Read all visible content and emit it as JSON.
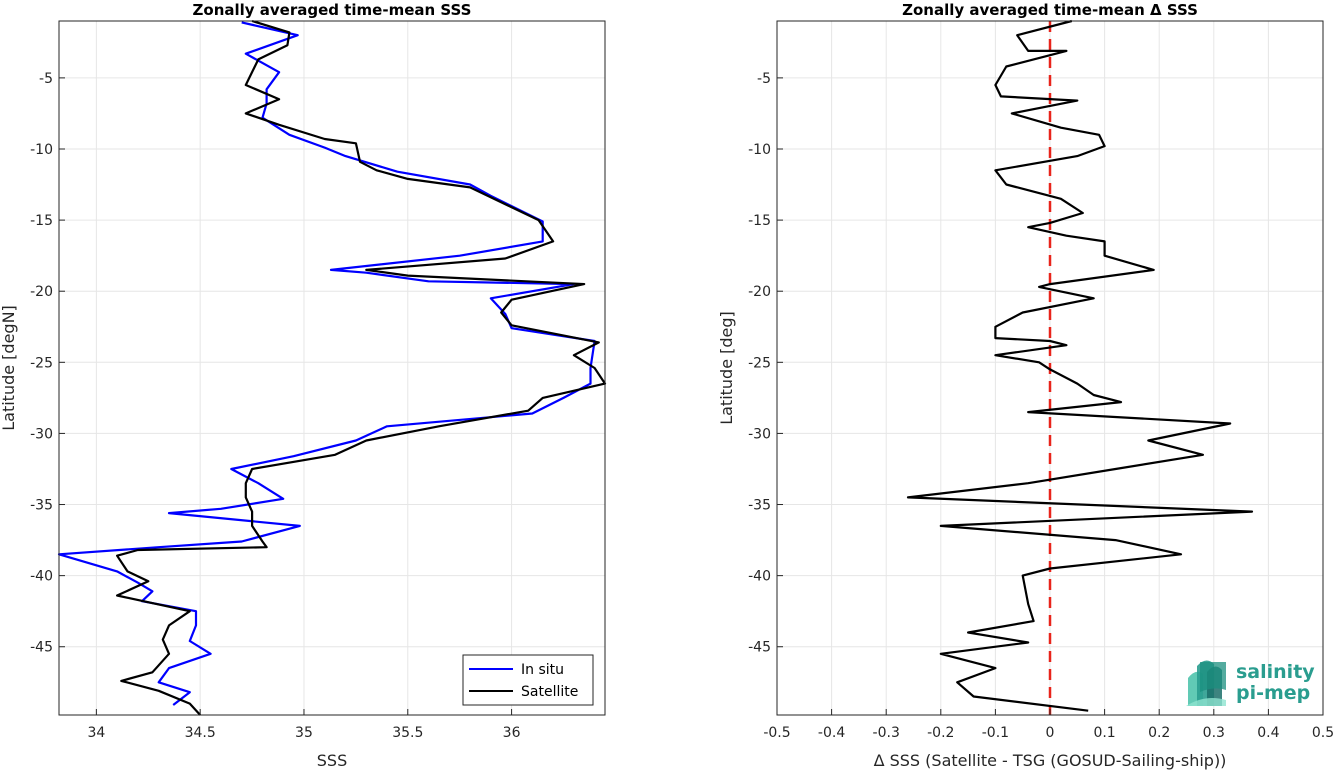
{
  "chart_data": [
    {
      "type": "line",
      "title": "Zonally averaged time-mean SSS",
      "xlabel": "SSS",
      "ylabel": "Latitude [degN]",
      "xlim": [
        33.82,
        36.45
      ],
      "ylim": [
        -49.8,
        -1
      ],
      "xticks": [
        "34",
        "34.5",
        "35",
        "35.5",
        "36"
      ],
      "yticks": [
        "-5",
        "-10",
        "-15",
        "-20",
        "-25",
        "-30",
        "-35",
        "-40",
        "-45"
      ],
      "grid": true,
      "legend_position": "bottom-right",
      "series": [
        {
          "name": "In situ",
          "color": "#0000ff",
          "points": [
            [
              34.7,
              -1.1
            ],
            [
              34.97,
              -2.0
            ],
            [
              34.72,
              -3.3
            ],
            [
              34.88,
              -4.6
            ],
            [
              34.82,
              -5.8
            ],
            [
              34.82,
              -6.8
            ],
            [
              34.8,
              -7.8
            ],
            [
              34.93,
              -9.0
            ],
            [
              35.1,
              -9.9
            ],
            [
              35.2,
              -10.5
            ],
            [
              35.45,
              -11.6
            ],
            [
              35.8,
              -12.5
            ],
            [
              35.9,
              -13.3
            ],
            [
              36.15,
              -15.1
            ],
            [
              36.15,
              -16.5
            ],
            [
              35.75,
              -17.5
            ],
            [
              35.13,
              -18.5
            ],
            [
              35.3,
              -18.7
            ],
            [
              35.6,
              -19.3
            ],
            [
              36.3,
              -19.5
            ],
            [
              35.9,
              -20.5
            ],
            [
              35.97,
              -21.6
            ],
            [
              36.0,
              -22.6
            ],
            [
              36.4,
              -23.5
            ],
            [
              36.38,
              -25.4
            ],
            [
              36.38,
              -26.5
            ],
            [
              36.25,
              -27.5
            ],
            [
              36.1,
              -28.6
            ],
            [
              35.4,
              -29.5
            ],
            [
              35.25,
              -30.5
            ],
            [
              34.95,
              -31.6
            ],
            [
              34.65,
              -32.5
            ],
            [
              34.78,
              -33.5
            ],
            [
              34.9,
              -34.6
            ],
            [
              34.6,
              -35.3
            ],
            [
              34.35,
              -35.6
            ],
            [
              34.98,
              -36.5
            ],
            [
              34.7,
              -37.6
            ],
            [
              34.3,
              -38.0
            ],
            [
              33.82,
              -38.5
            ],
            [
              34.1,
              -39.7
            ],
            [
              34.2,
              -40.5
            ],
            [
              34.27,
              -41.1
            ],
            [
              34.22,
              -41.8
            ],
            [
              34.48,
              -42.5
            ],
            [
              34.48,
              -43.5
            ],
            [
              34.45,
              -44.6
            ],
            [
              34.55,
              -45.5
            ],
            [
              34.35,
              -46.5
            ],
            [
              34.3,
              -47.5
            ],
            [
              34.45,
              -48.2
            ],
            [
              34.37,
              -49.1
            ]
          ]
        },
        {
          "name": "Satellite",
          "color": "#000000",
          "points": [
            [
              34.75,
              -1.0
            ],
            [
              34.93,
              -1.8
            ],
            [
              34.92,
              -2.7
            ],
            [
              34.78,
              -3.7
            ],
            [
              34.72,
              -5.5
            ],
            [
              34.88,
              -6.5
            ],
            [
              34.72,
              -7.5
            ],
            [
              34.88,
              -8.3
            ],
            [
              35.1,
              -9.3
            ],
            [
              35.25,
              -9.6
            ],
            [
              35.27,
              -10.9
            ],
            [
              35.35,
              -11.5
            ],
            [
              35.5,
              -12.1
            ],
            [
              35.8,
              -12.7
            ],
            [
              36.13,
              -15.0
            ],
            [
              36.2,
              -16.5
            ],
            [
              35.97,
              -17.7
            ],
            [
              35.3,
              -18.5
            ],
            [
              35.5,
              -18.9
            ],
            [
              36.35,
              -19.5
            ],
            [
              36.0,
              -20.6
            ],
            [
              35.95,
              -21.5
            ],
            [
              36.0,
              -22.4
            ],
            [
              36.42,
              -23.6
            ],
            [
              36.3,
              -24.5
            ],
            [
              36.4,
              -25.4
            ],
            [
              36.45,
              -26.5
            ],
            [
              36.15,
              -27.5
            ],
            [
              36.08,
              -28.4
            ],
            [
              35.65,
              -29.5
            ],
            [
              35.3,
              -30.5
            ],
            [
              35.15,
              -31.5
            ],
            [
              34.75,
              -32.5
            ],
            [
              34.72,
              -33.5
            ],
            [
              34.72,
              -34.5
            ],
            [
              34.75,
              -35.5
            ],
            [
              34.75,
              -36.5
            ],
            [
              34.8,
              -37.6
            ],
            [
              34.82,
              -38.0
            ],
            [
              34.2,
              -38.2
            ],
            [
              34.1,
              -38.6
            ],
            [
              34.15,
              -39.7
            ],
            [
              34.25,
              -40.4
            ],
            [
              34.1,
              -41.4
            ],
            [
              34.45,
              -42.5
            ],
            [
              34.35,
              -43.5
            ],
            [
              34.32,
              -44.5
            ],
            [
              34.35,
              -45.5
            ],
            [
              34.27,
              -46.8
            ],
            [
              34.12,
              -47.4
            ],
            [
              34.3,
              -48.1
            ],
            [
              34.45,
              -49.0
            ],
            [
              34.5,
              -49.8
            ]
          ]
        }
      ]
    },
    {
      "type": "line",
      "title": "Zonally averaged time-mean Δ SSS",
      "xlabel": "Δ SSS (Satellite - TSG (GOSUD-Sailing-ship))",
      "ylabel": "Latitude [deg]",
      "xlim": [
        -0.5,
        0.5
      ],
      "ylim": [
        -49.8,
        -1
      ],
      "xticks": [
        "-0.5",
        "-0.4",
        "-0.3",
        "-0.2",
        "-0.1",
        "0",
        "0.1",
        "0.2",
        "0.3",
        "0.4",
        "0.5"
      ],
      "yticks": [
        "-5",
        "-10",
        "-15",
        "-20",
        "-25",
        "-30",
        "-35",
        "-40",
        "-45"
      ],
      "grid": true,
      "reference_line": {
        "x": 0,
        "color": "#e8241b",
        "style": "dashed"
      },
      "series": [
        {
          "name": "",
          "color": "#000000",
          "points": [
            [
              0.04,
              -1.0
            ],
            [
              -0.06,
              -2.0
            ],
            [
              -0.04,
              -3.1
            ],
            [
              0.03,
              -3.1
            ],
            [
              -0.08,
              -4.2
            ],
            [
              -0.1,
              -5.5
            ],
            [
              -0.09,
              -6.3
            ],
            [
              0.05,
              -6.6
            ],
            [
              -0.07,
              -7.5
            ],
            [
              0.02,
              -8.5
            ],
            [
              0.09,
              -9.0
            ],
            [
              0.1,
              -9.8
            ],
            [
              0.05,
              -10.5
            ],
            [
              -0.1,
              -11.5
            ],
            [
              -0.08,
              -12.5
            ],
            [
              0.02,
              -13.5
            ],
            [
              0.06,
              -14.5
            ],
            [
              0.0,
              -15.2
            ],
            [
              -0.04,
              -15.5
            ],
            [
              0.03,
              -16.1
            ],
            [
              0.1,
              -16.5
            ],
            [
              0.1,
              -17.5
            ],
            [
              0.19,
              -18.5
            ],
            [
              0.0,
              -19.5
            ],
            [
              -0.02,
              -19.7
            ],
            [
              0.08,
              -20.5
            ],
            [
              -0.05,
              -21.5
            ],
            [
              -0.1,
              -22.5
            ],
            [
              -0.1,
              -23.3
            ],
            [
              0.0,
              -23.5
            ],
            [
              0.03,
              -23.8
            ],
            [
              -0.1,
              -24.5
            ],
            [
              -0.02,
              -25.0
            ],
            [
              0.0,
              -25.5
            ],
            [
              0.05,
              -26.5
            ],
            [
              0.08,
              -27.3
            ],
            [
              0.13,
              -27.8
            ],
            [
              -0.04,
              -28.5
            ],
            [
              0.33,
              -29.3
            ],
            [
              0.18,
              -30.5
            ],
            [
              0.28,
              -31.5
            ],
            [
              0.12,
              -32.5
            ],
            [
              -0.04,
              -33.5
            ],
            [
              -0.26,
              -34.5
            ],
            [
              0.37,
              -35.5
            ],
            [
              -0.2,
              -36.5
            ],
            [
              0.12,
              -37.5
            ],
            [
              0.24,
              -38.5
            ],
            [
              0.0,
              -39.5
            ],
            [
              -0.05,
              -40.0
            ],
            [
              -0.04,
              -42.0
            ],
            [
              -0.03,
              -43.2
            ],
            [
              -0.15,
              -44.0
            ],
            [
              -0.04,
              -44.7
            ],
            [
              -0.2,
              -45.5
            ],
            [
              -0.1,
              -46.5
            ],
            [
              -0.17,
              -47.5
            ],
            [
              -0.14,
              -48.5
            ],
            [
              0.07,
              -49.5
            ]
          ]
        }
      ]
    }
  ],
  "legend": {
    "items": [
      "In situ",
      "Satellite"
    ]
  },
  "logo": {
    "line1": "salinity",
    "line2": "pi-mep",
    "colors": [
      "#2a9d8f",
      "#45c1a8",
      "#1b6f6a"
    ]
  }
}
